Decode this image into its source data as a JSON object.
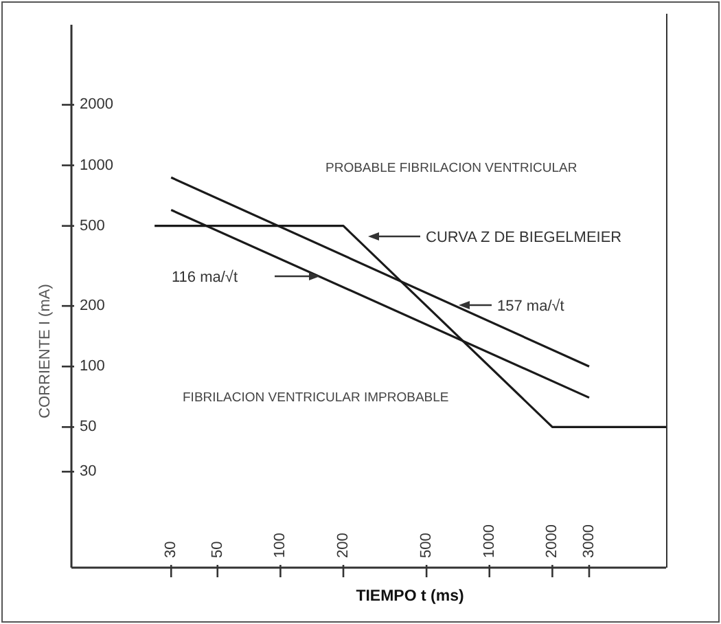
{
  "chart_data": {
    "type": "line",
    "xlabel": "TIEMPO t (ms)",
    "ylabel": "CORRIENTE I (mA)",
    "log": "xy",
    "xlim": [
      10,
      7000
    ],
    "ylim": [
      10,
      5000
    ],
    "xticks": [
      30,
      50,
      100,
      200,
      500,
      1000,
      2000,
      3000
    ],
    "yticks": [
      30,
      50,
      100,
      200,
      500,
      1000,
      2000
    ],
    "grid": false,
    "legend": false,
    "series": [
      {
        "name": "CURVA Z DE BIEGELMEIER",
        "color": "#1a1a1a",
        "x": [
          25,
          200,
          2000,
          7000
        ],
        "values": [
          500,
          500,
          50,
          50
        ]
      },
      {
        "name": "116 ma/√t",
        "color": "#1a1a1a",
        "x": [
          30,
          3000
        ],
        "values": [
          600,
          70
        ]
      },
      {
        "name": "157 ma/√t",
        "color": "#1a1a1a",
        "x": [
          30,
          3000
        ],
        "values": [
          870,
          100
        ]
      }
    ],
    "annotations": [
      "PROBABLE FIBRILACION VENTRICULAR",
      "FIBRILACION VENTRICULAR IMPROBABLE"
    ]
  }
}
